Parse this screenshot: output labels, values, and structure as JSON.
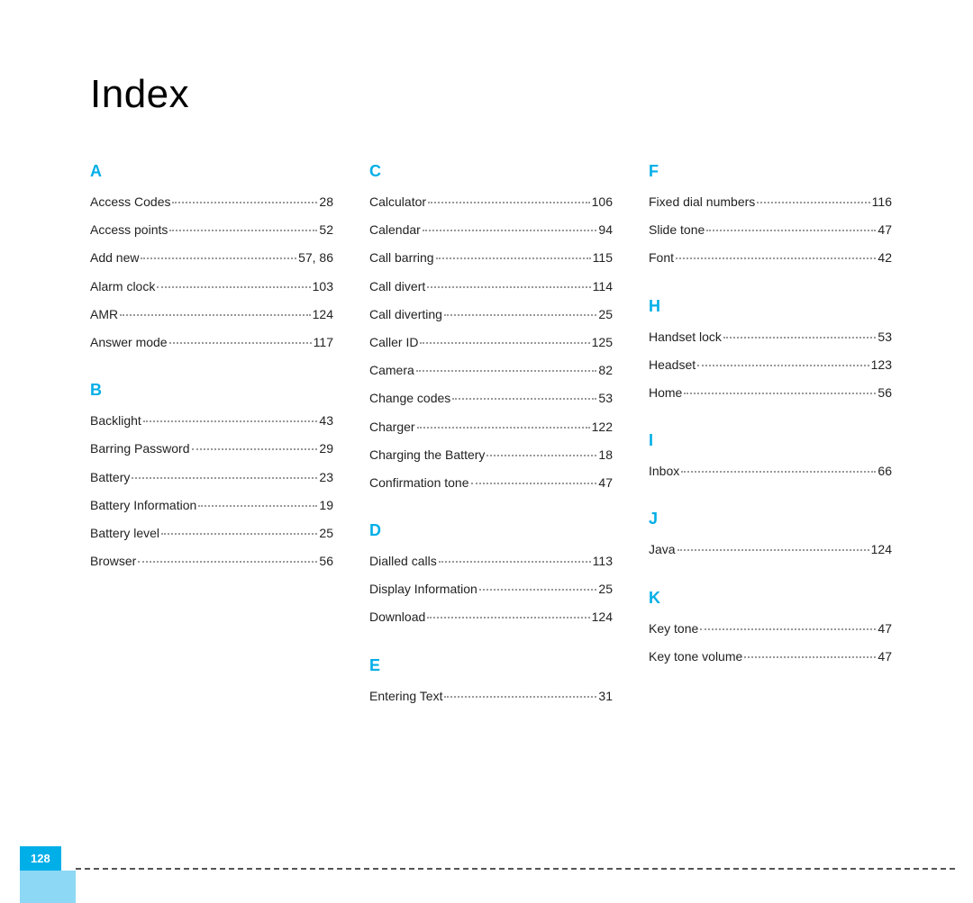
{
  "title": "Index",
  "page_number": "128",
  "accent_color": "#00aee8",
  "accent_light": "#8dd8f5",
  "text_color": "#222222",
  "dot_color": "#999999",
  "columns": [
    {
      "sections": [
        {
          "letter": "A",
          "entries": [
            {
              "term": "Access Codes",
              "pages": "28"
            },
            {
              "term": "Access points",
              "pages": "52"
            },
            {
              "term": "Add new",
              "pages": "57, 86"
            },
            {
              "term": "Alarm clock",
              "pages": "103"
            },
            {
              "term": "AMR",
              "pages": "124"
            },
            {
              "term": "Answer mode",
              "pages": "117"
            }
          ]
        },
        {
          "letter": "B",
          "entries": [
            {
              "term": "Backlight",
              "pages": "43"
            },
            {
              "term": "Barring Password",
              "pages": "29"
            },
            {
              "term": "Battery",
              "pages": "23"
            },
            {
              "term": "Battery Information",
              "pages": "19"
            },
            {
              "term": "Battery level",
              "pages": "25"
            },
            {
              "term": "Browser",
              "pages": "56"
            }
          ]
        }
      ]
    },
    {
      "sections": [
        {
          "letter": "C",
          "entries": [
            {
              "term": "Calculator",
              "pages": "106"
            },
            {
              "term": "Calendar",
              "pages": "94"
            },
            {
              "term": "Call barring",
              "pages": "115"
            },
            {
              "term": "Call divert",
              "pages": "114"
            },
            {
              "term": "Call diverting",
              "pages": "25"
            },
            {
              "term": "Caller ID",
              "pages": "125"
            },
            {
              "term": "Camera",
              "pages": "82"
            },
            {
              "term": "Change codes",
              "pages": "53"
            },
            {
              "term": "Charger",
              "pages": "122"
            },
            {
              "term": "Charging the Battery",
              "pages": "18"
            },
            {
              "term": "Confirmation tone",
              "pages": "47"
            }
          ]
        },
        {
          "letter": "D",
          "entries": [
            {
              "term": "Dialled calls",
              "pages": "113"
            },
            {
              "term": "Display Information",
              "pages": "25"
            },
            {
              "term": "Download",
              "pages": "124"
            }
          ]
        },
        {
          "letter": "E",
          "entries": [
            {
              "term": "Entering Text",
              "pages": "31"
            }
          ]
        }
      ]
    },
    {
      "sections": [
        {
          "letter": "F",
          "entries": [
            {
              "term": "Fixed dial numbers",
              "pages": "116"
            },
            {
              "term": "Slide tone",
              "pages": "47"
            },
            {
              "term": "Font",
              "pages": "42"
            }
          ]
        },
        {
          "letter": "H",
          "entries": [
            {
              "term": "Handset lock",
              "pages": "53"
            },
            {
              "term": "Headset",
              "pages": "123"
            },
            {
              "term": "Home",
              "pages": "56"
            }
          ]
        },
        {
          "letter": "I",
          "entries": [
            {
              "term": "Inbox",
              "pages": "66"
            }
          ]
        },
        {
          "letter": "J",
          "entries": [
            {
              "term": "Java",
              "pages": "124"
            }
          ]
        },
        {
          "letter": "K",
          "entries": [
            {
              "term": "Key tone",
              "pages": "47"
            },
            {
              "term": "Key tone volume",
              "pages": "47"
            }
          ]
        }
      ]
    }
  ]
}
